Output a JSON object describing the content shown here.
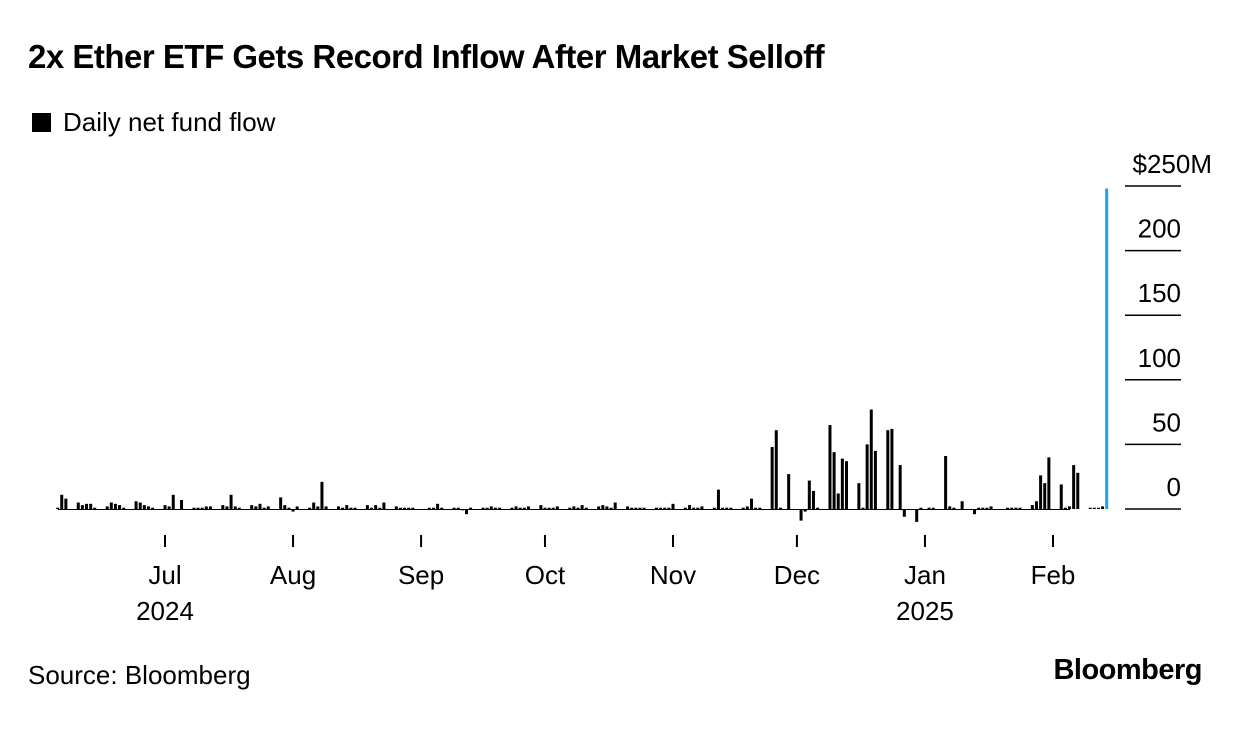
{
  "title": "2x Ether ETF Gets Record Inflow After Market Selloff",
  "legend": {
    "label": "Daily net fund flow",
    "color": "#000000"
  },
  "source": "Source: Bloomberg",
  "brand": "Bloomberg",
  "colors": {
    "bar": "#000000",
    "highlight": "#1ba5e6",
    "gridline": "#000000"
  },
  "chart_data": {
    "type": "bar",
    "title": "2x Ether ETF Gets Record Inflow After Market Selloff",
    "xlabel": "",
    "ylabel": "",
    "ylim": [
      0,
      250
    ],
    "y_unit_label": "$250M",
    "y_ticks": [
      {
        "value": 250,
        "label": "$250M"
      },
      {
        "value": 200,
        "label": "200"
      },
      {
        "value": 150,
        "label": "150"
      },
      {
        "value": 100,
        "label": "100"
      },
      {
        "value": 50,
        "label": "50"
      },
      {
        "value": 0,
        "label": "0"
      }
    ],
    "x_start": "2024-06-05",
    "x_ticks": [
      {
        "date": "2024-07-01",
        "label": "Jul",
        "year": "2024"
      },
      {
        "date": "2024-08-01",
        "label": "Aug",
        "year": ""
      },
      {
        "date": "2024-09-01",
        "label": "Sep",
        "year": ""
      },
      {
        "date": "2024-10-01",
        "label": "Oct",
        "year": ""
      },
      {
        "date": "2024-11-01",
        "label": "Nov",
        "year": ""
      },
      {
        "date": "2024-12-01",
        "label": "Dec",
        "year": ""
      },
      {
        "date": "2025-01-01",
        "label": "Jan",
        "year": "2025"
      },
      {
        "date": "2025-02-01",
        "label": "Feb",
        "year": ""
      }
    ],
    "grid": false,
    "legend_position": "top-left",
    "series": [
      {
        "name": "Daily net fund flow",
        "points": [
          [
            "2024-06-05",
            1
          ],
          [
            "2024-06-06",
            11
          ],
          [
            "2024-06-07",
            8
          ],
          [
            "2024-06-10",
            5
          ],
          [
            "2024-06-11",
            3
          ],
          [
            "2024-06-12",
            4
          ],
          [
            "2024-06-13",
            4
          ],
          [
            "2024-06-14",
            1
          ],
          [
            "2024-06-17",
            2
          ],
          [
            "2024-06-18",
            5
          ],
          [
            "2024-06-19",
            4
          ],
          [
            "2024-06-20",
            3
          ],
          [
            "2024-06-21",
            1
          ],
          [
            "2024-06-24",
            6
          ],
          [
            "2024-06-25",
            5
          ],
          [
            "2024-06-26",
            3
          ],
          [
            "2024-06-27",
            2
          ],
          [
            "2024-06-28",
            1
          ],
          [
            "2024-07-01",
            3
          ],
          [
            "2024-07-02",
            2
          ],
          [
            "2024-07-03",
            11
          ],
          [
            "2024-07-05",
            7
          ],
          [
            "2024-07-08",
            1
          ],
          [
            "2024-07-09",
            1
          ],
          [
            "2024-07-10",
            1
          ],
          [
            "2024-07-11",
            2
          ],
          [
            "2024-07-12",
            2
          ],
          [
            "2024-07-15",
            3
          ],
          [
            "2024-07-16",
            2
          ],
          [
            "2024-07-17",
            11
          ],
          [
            "2024-07-18",
            2
          ],
          [
            "2024-07-19",
            1
          ],
          [
            "2024-07-22",
            3
          ],
          [
            "2024-07-23",
            2
          ],
          [
            "2024-07-24",
            4
          ],
          [
            "2024-07-25",
            1
          ],
          [
            "2024-07-26",
            2
          ],
          [
            "2024-07-29",
            9
          ],
          [
            "2024-07-30",
            3
          ],
          [
            "2024-07-31",
            1
          ],
          [
            "2024-08-01",
            -2
          ],
          [
            "2024-08-02",
            2
          ],
          [
            "2024-08-05",
            1
          ],
          [
            "2024-08-06",
            5
          ],
          [
            "2024-08-07",
            2
          ],
          [
            "2024-08-08",
            21
          ],
          [
            "2024-08-09",
            2
          ],
          [
            "2024-08-12",
            2
          ],
          [
            "2024-08-13",
            1
          ],
          [
            "2024-08-14",
            3
          ],
          [
            "2024-08-15",
            1
          ],
          [
            "2024-08-16",
            1
          ],
          [
            "2024-08-19",
            3
          ],
          [
            "2024-08-20",
            1
          ],
          [
            "2024-08-21",
            3
          ],
          [
            "2024-08-22",
            1
          ],
          [
            "2024-08-23",
            5
          ],
          [
            "2024-08-26",
            2
          ],
          [
            "2024-08-27",
            1
          ],
          [
            "2024-08-28",
            1
          ],
          [
            "2024-08-29",
            1
          ],
          [
            "2024-08-30",
            1
          ],
          [
            "2024-09-03",
            1
          ],
          [
            "2024-09-04",
            1
          ],
          [
            "2024-09-05",
            4
          ],
          [
            "2024-09-06",
            1
          ],
          [
            "2024-09-09",
            1
          ],
          [
            "2024-09-10",
            1
          ],
          [
            "2024-09-11",
            -1
          ],
          [
            "2024-09-12",
            -4
          ],
          [
            "2024-09-13",
            1
          ],
          [
            "2024-09-16",
            1
          ],
          [
            "2024-09-17",
            1
          ],
          [
            "2024-09-18",
            2
          ],
          [
            "2024-09-19",
            1
          ],
          [
            "2024-09-20",
            1
          ],
          [
            "2024-09-23",
            1
          ],
          [
            "2024-09-24",
            2
          ],
          [
            "2024-09-25",
            1
          ],
          [
            "2024-09-26",
            1
          ],
          [
            "2024-09-27",
            2
          ],
          [
            "2024-09-30",
            3
          ],
          [
            "2024-10-01",
            1
          ],
          [
            "2024-10-02",
            1
          ],
          [
            "2024-10-03",
            1
          ],
          [
            "2024-10-04",
            2
          ],
          [
            "2024-10-07",
            1
          ],
          [
            "2024-10-08",
            2
          ],
          [
            "2024-10-09",
            1
          ],
          [
            "2024-10-10",
            3
          ],
          [
            "2024-10-11",
            1
          ],
          [
            "2024-10-14",
            2
          ],
          [
            "2024-10-15",
            3
          ],
          [
            "2024-10-16",
            2
          ],
          [
            "2024-10-17",
            1
          ],
          [
            "2024-10-18",
            5
          ],
          [
            "2024-10-21",
            2
          ],
          [
            "2024-10-22",
            1
          ],
          [
            "2024-10-23",
            1
          ],
          [
            "2024-10-24",
            1
          ],
          [
            "2024-10-25",
            1
          ],
          [
            "2024-10-28",
            1
          ],
          [
            "2024-10-29",
            1
          ],
          [
            "2024-10-30",
            1
          ],
          [
            "2024-10-31",
            1
          ],
          [
            "2024-11-01",
            4
          ],
          [
            "2024-11-04",
            1
          ],
          [
            "2024-11-05",
            3
          ],
          [
            "2024-11-06",
            1
          ],
          [
            "2024-11-07",
            1
          ],
          [
            "2024-11-08",
            2
          ],
          [
            "2024-11-11",
            1
          ],
          [
            "2024-11-12",
            15
          ],
          [
            "2024-11-13",
            1
          ],
          [
            "2024-11-14",
            1
          ],
          [
            "2024-11-15",
            1
          ],
          [
            "2024-11-18",
            1
          ],
          [
            "2024-11-19",
            2
          ],
          [
            "2024-11-20",
            8
          ],
          [
            "2024-11-21",
            1
          ],
          [
            "2024-11-22",
            1
          ],
          [
            "2024-11-25",
            48
          ],
          [
            "2024-11-26",
            61
          ],
          [
            "2024-11-27",
            1
          ],
          [
            "2024-11-29",
            27
          ],
          [
            "2024-12-02",
            -9
          ],
          [
            "2024-12-03",
            -2
          ],
          [
            "2024-12-04",
            22
          ],
          [
            "2024-12-05",
            14
          ],
          [
            "2024-12-06",
            1
          ],
          [
            "2024-12-09",
            65
          ],
          [
            "2024-12-10",
            44
          ],
          [
            "2024-12-11",
            12
          ],
          [
            "2024-12-12",
            39
          ],
          [
            "2024-12-13",
            37
          ],
          [
            "2024-12-16",
            20
          ],
          [
            "2024-12-17",
            1
          ],
          [
            "2024-12-18",
            50
          ],
          [
            "2024-12-19",
            77
          ],
          [
            "2024-12-20",
            45
          ],
          [
            "2024-12-23",
            61
          ],
          [
            "2024-12-24",
            62
          ],
          [
            "2024-12-26",
            34
          ],
          [
            "2024-12-27",
            -6
          ],
          [
            "2024-12-30",
            -10
          ],
          [
            "2024-12-31",
            1
          ],
          [
            "2025-01-02",
            1
          ],
          [
            "2025-01-03",
            1
          ],
          [
            "2025-01-06",
            41
          ],
          [
            "2025-01-07",
            2
          ],
          [
            "2025-01-08",
            1
          ],
          [
            "2025-01-10",
            6
          ],
          [
            "2025-01-13",
            -4
          ],
          [
            "2025-01-14",
            1
          ],
          [
            "2025-01-15",
            1
          ],
          [
            "2025-01-16",
            1
          ],
          [
            "2025-01-17",
            2
          ],
          [
            "2025-01-21",
            1
          ],
          [
            "2025-01-22",
            1
          ],
          [
            "2025-01-23",
            1
          ],
          [
            "2025-01-24",
            1
          ],
          [
            "2025-01-27",
            3
          ],
          [
            "2025-01-28",
            6
          ],
          [
            "2025-01-29",
            26
          ],
          [
            "2025-01-30",
            20
          ],
          [
            "2025-01-31",
            40
          ],
          [
            "2025-02-03",
            19
          ],
          [
            "2025-02-04",
            1
          ],
          [
            "2025-02-05",
            2
          ],
          [
            "2025-02-06",
            34
          ],
          [
            "2025-02-07",
            28
          ],
          [
            "2025-02-10",
            1
          ],
          [
            "2025-02-11",
            1
          ],
          [
            "2025-02-12",
            1
          ],
          [
            "2025-02-13",
            2
          ],
          [
            "2025-02-14",
            248
          ]
        ],
        "highlight_last": true
      }
    ]
  }
}
